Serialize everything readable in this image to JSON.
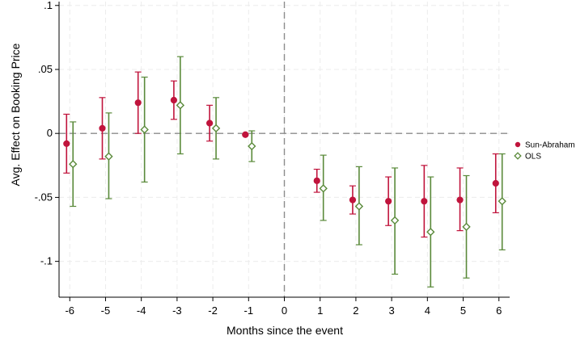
{
  "chart_data": {
    "type": "scatter",
    "subtype": "event-study coefficient plot with confidence intervals",
    "xlabel": "Months since the event",
    "ylabel": "Avg. Effect on Booking Price",
    "xlim": [
      -6.3,
      6.3
    ],
    "ylim": [
      -0.128,
      0.103
    ],
    "x_ticks": [
      -6,
      -5,
      -4,
      -3,
      -2,
      -1,
      0,
      1,
      2,
      3,
      4,
      5,
      6
    ],
    "x_tick_labels": [
      "-6",
      "-5",
      "-4",
      "-3",
      "-2",
      "-1",
      "0",
      "1",
      "2",
      "3",
      "4",
      "5",
      "6"
    ],
    "y_ticks": [
      0.1,
      0.05,
      0,
      -0.05,
      -0.1
    ],
    "y_tick_labels": [
      ".1",
      ".05",
      "0",
      "-.05",
      "-.1"
    ],
    "reference_lines": {
      "horizontal_y": 0,
      "vertical_x": 0,
      "style": "dashed"
    },
    "grid": true,
    "legend_position": "right",
    "series": [
      {
        "name": "Sun-Abraham",
        "marker": "filled-circle",
        "color": "#c0143c",
        "x_offset": -0.09,
        "points": [
          {
            "x": -6,
            "y": -0.008,
            "lo": -0.031,
            "hi": 0.015
          },
          {
            "x": -5,
            "y": 0.004,
            "lo": -0.02,
            "hi": 0.028
          },
          {
            "x": -4,
            "y": 0.024,
            "lo": 0.0,
            "hi": 0.048
          },
          {
            "x": -3,
            "y": 0.026,
            "lo": 0.011,
            "hi": 0.041
          },
          {
            "x": -2,
            "y": 0.008,
            "lo": -0.006,
            "hi": 0.022
          },
          {
            "x": -1,
            "y": -0.001,
            "lo": -0.001,
            "hi": -0.001
          },
          {
            "x": 1,
            "y": -0.037,
            "lo": -0.046,
            "hi": -0.028
          },
          {
            "x": 2,
            "y": -0.052,
            "lo": -0.063,
            "hi": -0.041
          },
          {
            "x": 3,
            "y": -0.053,
            "lo": -0.072,
            "hi": -0.034
          },
          {
            "x": 4,
            "y": -0.053,
            "lo": -0.081,
            "hi": -0.025
          },
          {
            "x": 5,
            "y": -0.052,
            "lo": -0.076,
            "hi": -0.027
          },
          {
            "x": 6,
            "y": -0.039,
            "lo": -0.062,
            "hi": -0.016
          }
        ]
      },
      {
        "name": "OLS",
        "marker": "hollow-diamond",
        "color": "#5a8a3a",
        "x_offset": 0.09,
        "points": [
          {
            "x": -6,
            "y": -0.024,
            "lo": -0.057,
            "hi": 0.009
          },
          {
            "x": -5,
            "y": -0.018,
            "lo": -0.051,
            "hi": 0.016
          },
          {
            "x": -4,
            "y": 0.003,
            "lo": -0.038,
            "hi": 0.044
          },
          {
            "x": -3,
            "y": 0.022,
            "lo": -0.016,
            "hi": 0.06
          },
          {
            "x": -2,
            "y": 0.004,
            "lo": -0.02,
            "hi": 0.028
          },
          {
            "x": -1,
            "y": -0.01,
            "lo": -0.022,
            "hi": 0.002
          },
          {
            "x": 1,
            "y": -0.043,
            "lo": -0.068,
            "hi": -0.017
          },
          {
            "x": 2,
            "y": -0.057,
            "lo": -0.087,
            "hi": -0.026
          },
          {
            "x": 3,
            "y": -0.068,
            "lo": -0.11,
            "hi": -0.027
          },
          {
            "x": 4,
            "y": -0.077,
            "lo": -0.12,
            "hi": -0.034
          },
          {
            "x": 5,
            "y": -0.073,
            "lo": -0.113,
            "hi": -0.033
          },
          {
            "x": 6,
            "y": -0.053,
            "lo": -0.091,
            "hi": -0.016
          }
        ]
      }
    ]
  }
}
